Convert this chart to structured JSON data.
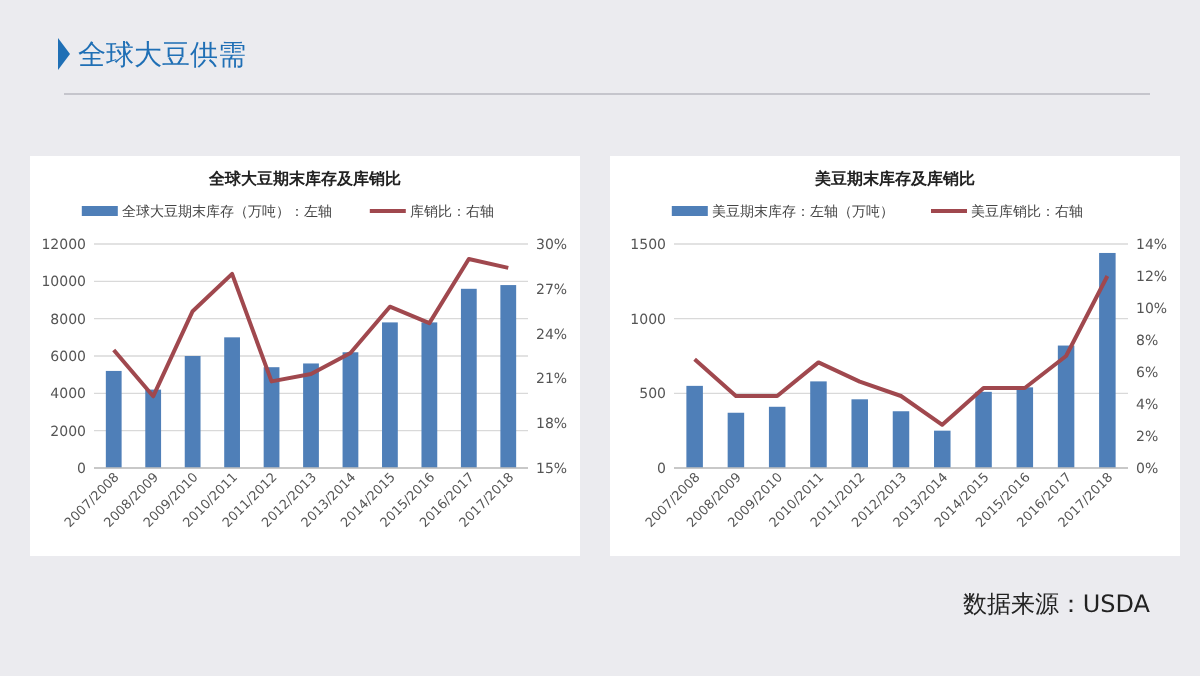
{
  "chart_data": [
    {
      "type": "bar",
      "title": "全球大豆期末库存及库销比",
      "annotations": [
        "全球大豆供需"
      ],
      "categories": [
        "2007/2008",
        "2008/2009",
        "2009/2010",
        "2010/2011",
        "2011/2012",
        "2012/2013",
        "2013/2014",
        "2014/2015",
        "2015/2016",
        "2016/2017",
        "2017/2018"
      ],
      "series": [
        {
          "name": "全球大豆期末库存（万吨）：左轴",
          "color": "#4f7fb8",
          "values": [
            5200,
            4200,
            6000,
            7000,
            5400,
            5600,
            6200,
            7800,
            7800,
            9600,
            9800
          ]
        },
        {
          "name": "库销比：右轴",
          "type": "line",
          "axis": "y2",
          "color": "#a0484e",
          "values": [
            22.9,
            19.8,
            25.5,
            28.0,
            20.8,
            21.3,
            22.7,
            25.8,
            24.7,
            29.0,
            28.4
          ]
        }
      ],
      "ylim": [
        0,
        12000
      ],
      "yticks": [
        0,
        2000,
        4000,
        6000,
        8000,
        10000,
        12000
      ],
      "y2lim": [
        15,
        30
      ],
      "y2ticks": [
        {
          "value": 15,
          "label": "15%"
        },
        {
          "value": 18,
          "label": "18%"
        },
        {
          "value": 21,
          "label": "21%"
        },
        {
          "value": 24,
          "label": "24%"
        },
        {
          "value": 27,
          "label": "27%"
        },
        {
          "value": 30,
          "label": "30%"
        }
      ],
      "grid": "y",
      "legend": "top",
      "marker": "none",
      "line_style": "solid"
    },
    {
      "type": "bar",
      "title": "美豆期末库存及库销比",
      "annotations": [
        "数据来源：USDA"
      ],
      "categories": [
        "2007/2008",
        "2008/2009",
        "2009/2010",
        "2010/2011",
        "2011/2012",
        "2012/2013",
        "2013/2014",
        "2014/2015",
        "2015/2016",
        "2016/2017",
        "2017/2018"
      ],
      "series": [
        {
          "name": "美豆期末库存：左轴（万吨）",
          "color": "#4f7fb8",
          "values": [
            550,
            370,
            410,
            580,
            460,
            380,
            250,
            510,
            540,
            820,
            1440
          ]
        },
        {
          "name": "美豆库销比：右轴",
          "type": "line",
          "axis": "y2",
          "color": "#a0484e",
          "values": [
            6.8,
            4.5,
            4.5,
            6.6,
            5.4,
            4.5,
            2.7,
            5.0,
            5.0,
            7.0,
            12.0
          ]
        }
      ],
      "ylim": [
        0,
        1500
      ],
      "yticks": [
        0,
        500,
        1000,
        1500
      ],
      "y2lim": [
        0,
        14
      ],
      "y2ticks": [
        {
          "value": 0,
          "label": "0%"
        },
        {
          "value": 2,
          "label": "2%"
        },
        {
          "value": 4,
          "label": "4%"
        },
        {
          "value": 6,
          "label": "6%"
        },
        {
          "value": 8,
          "label": "8%"
        },
        {
          "value": 10,
          "label": "10%"
        },
        {
          "value": 12,
          "label": "12%"
        },
        {
          "value": 14,
          "label": "14%"
        }
      ],
      "grid": "y",
      "legend": "top",
      "marker": "none",
      "line_style": "solid"
    }
  ]
}
